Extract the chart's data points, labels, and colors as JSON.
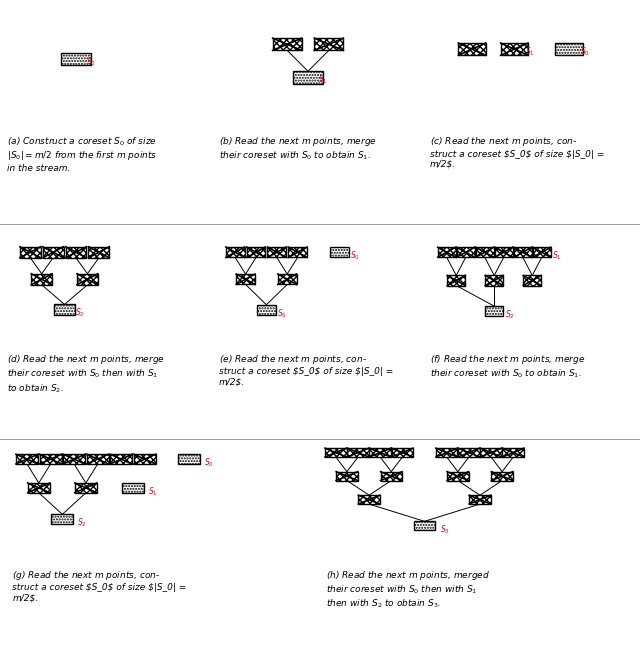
{
  "background": "#ffffff",
  "captions": [
    "(a) Construct a coreset $S_0$ of size\n$|S_0| = m/2$ from the first $m$ points\nin the stream.",
    "(b) Read the next $m$ points, merge\ntheir coreset with $S_0$ to obtain $S_1$.",
    "(c) Read the next $m$ points, con-\nstruct a coreset $S_0$ of size $|S_0| =\nm/2$.",
    "(d) Read the next $m$ points, merge\ntheir coreset with $S_0$ then with $S_1$\nto obtain $S_2$.",
    "(e) Read the next $m$ points, con-\nstruct a coreset $S_0$ of size $|S_0| =\nm/2$.",
    "(f) Read the next $m$ points, merge\ntheir coreset with $S_0$ to obtain $S_1$.",
    "(g) Read the next $m$ points, con-\nstruct a coreset $S_0$ of size $|S_0| =\nm/2$.",
    "(h) Read the next $m$ points, merged\ntheir coreset with $S_0$ then with $S_1$\nthen with $S_2$ to obtain $S_3$."
  ]
}
